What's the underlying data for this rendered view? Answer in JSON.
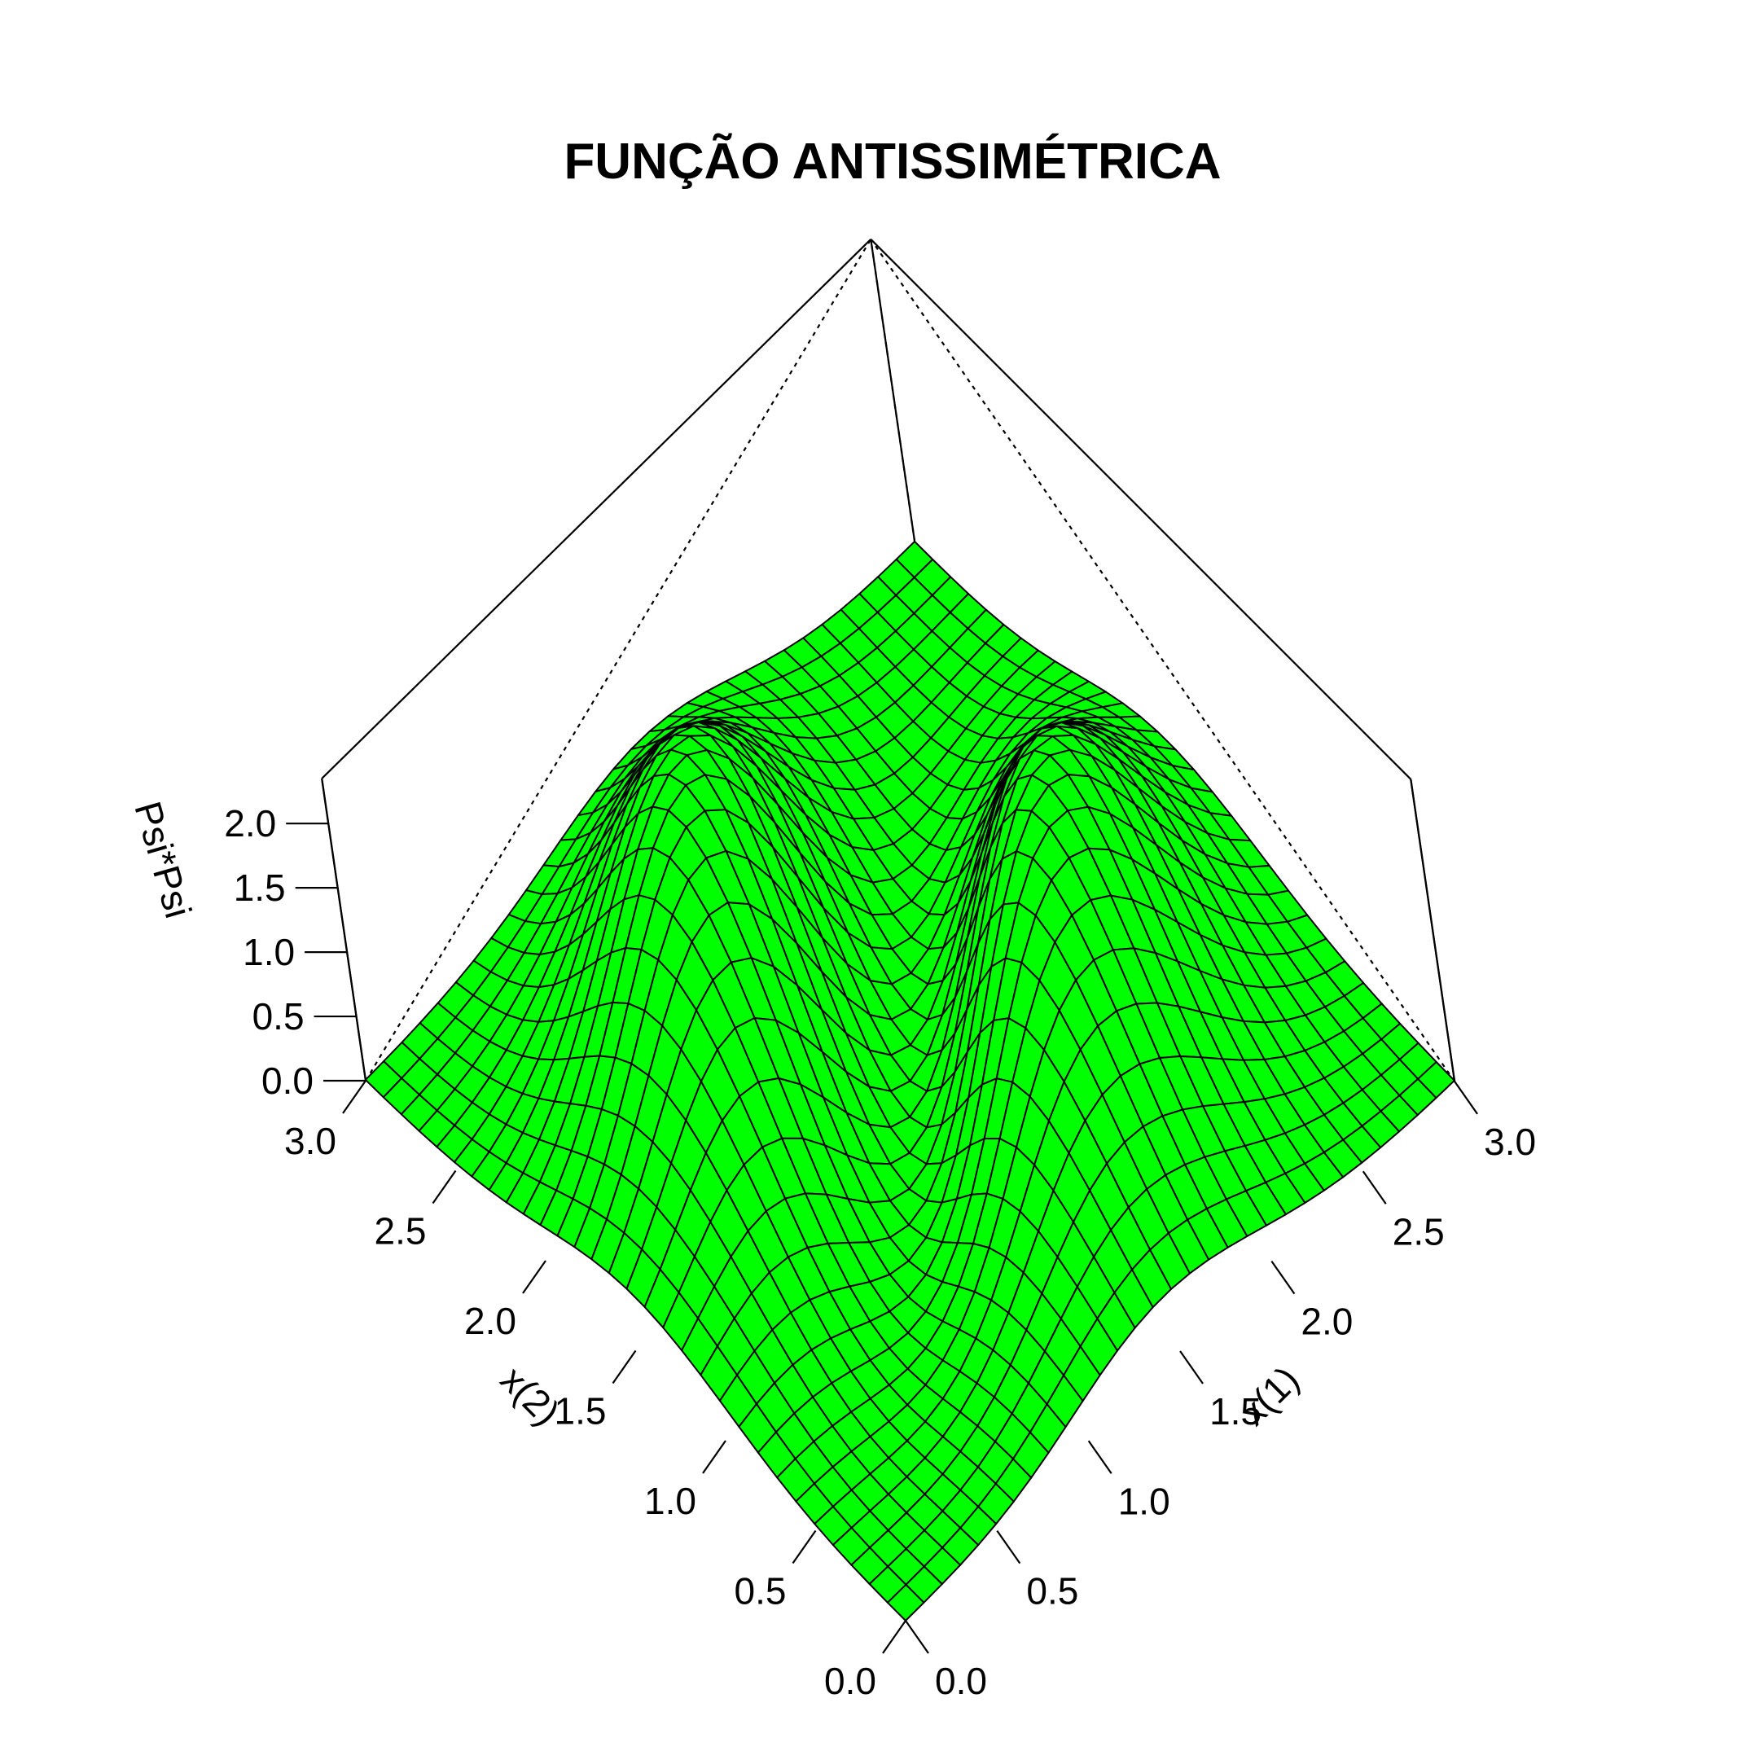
{
  "chart_data": {
    "type": "surface",
    "title": "FUNÇÃO ANTISSIMÉTRICA",
    "xlabel": "x(1)",
    "ylabel": "x(2)",
    "zlabel": "Psi*Psi",
    "xlim": [
      0,
      3
    ],
    "ylim": [
      0,
      3
    ],
    "zlim": [
      0,
      2.35
    ],
    "x_ticks": [
      "0.0",
      "0.5",
      "1.0",
      "1.5",
      "2.0",
      "2.5",
      "3.0"
    ],
    "y_ticks": [
      "0.0",
      "0.5",
      "1.0",
      "1.5",
      "2.0",
      "2.5",
      "3.0"
    ],
    "z_ticks": [
      "0.0",
      "0.5",
      "1.0",
      "1.5",
      "2.0"
    ],
    "surface_color": "#00ff00",
    "mesh_color": "#000000",
    "grid_points": 31,
    "peak_value": 2.3,
    "peaks": [
      {
        "x1": 2.25,
        "x2": 0.75,
        "z": 2.3
      },
      {
        "x1": 0.75,
        "x2": 2.25,
        "z": 2.3
      }
    ]
  }
}
